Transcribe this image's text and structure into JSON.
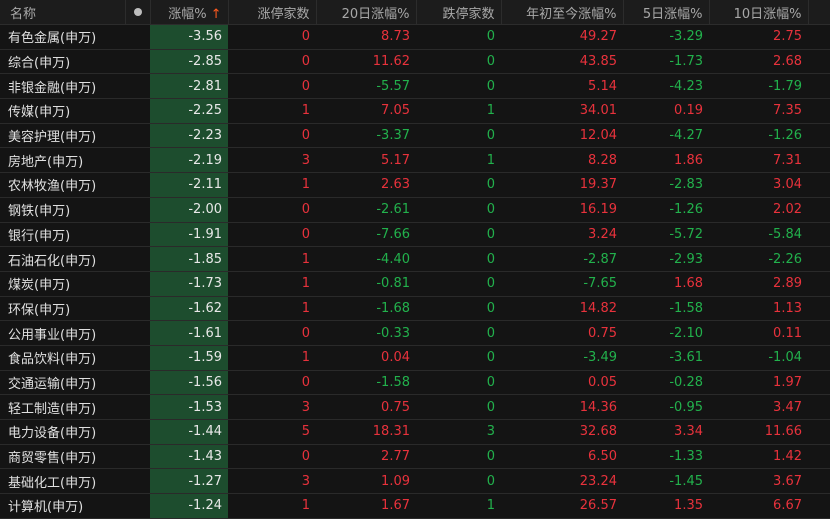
{
  "headers": {
    "name": "名称",
    "change": "涨幅%",
    "sort_arrow": "↑",
    "limit_up": "涨停家数",
    "d20": "20日涨幅%",
    "limit_down": "跌停家数",
    "ytd": "年初至今涨幅%",
    "d5": "5日涨幅%",
    "d10": "10日涨幅%"
  },
  "colors": {
    "up": "#e8323c",
    "down": "#22b14c",
    "highlight_column": "#1d4d2e"
  },
  "rows": [
    [
      "有色金属(申万)",
      "-3.56",
      "0",
      "8.73",
      "0",
      "49.27",
      "-3.29",
      "2.75"
    ],
    [
      "综合(申万)",
      "-2.85",
      "0",
      "11.62",
      "0",
      "43.85",
      "-1.73",
      "2.68"
    ],
    [
      "非银金融(申万)",
      "-2.81",
      "0",
      "-5.57",
      "0",
      "5.14",
      "-4.23",
      "-1.79"
    ],
    [
      "传媒(申万)",
      "-2.25",
      "1",
      "7.05",
      "1",
      "34.01",
      "0.19",
      "7.35"
    ],
    [
      "美容护理(申万)",
      "-2.23",
      "0",
      "-3.37",
      "0",
      "12.04",
      "-4.27",
      "-1.26"
    ],
    [
      "房地产(申万)",
      "-2.19",
      "3",
      "5.17",
      "1",
      "8.28",
      "1.86",
      "7.31"
    ],
    [
      "农林牧渔(申万)",
      "-2.11",
      "1",
      "2.63",
      "0",
      "19.37",
      "-2.83",
      "3.04"
    ],
    [
      "钢铁(申万)",
      "-2.00",
      "0",
      "-2.61",
      "0",
      "16.19",
      "-1.26",
      "2.02"
    ],
    [
      "银行(申万)",
      "-1.91",
      "0",
      "-7.66",
      "0",
      "3.24",
      "-5.72",
      "-5.84"
    ],
    [
      "石油石化(申万)",
      "-1.85",
      "1",
      "-4.40",
      "0",
      "-2.87",
      "-2.93",
      "-2.26"
    ],
    [
      "煤炭(申万)",
      "-1.73",
      "1",
      "-0.81",
      "0",
      "-7.65",
      "1.68",
      "2.89"
    ],
    [
      "环保(申万)",
      "-1.62",
      "1",
      "-1.68",
      "0",
      "14.82",
      "-1.58",
      "1.13"
    ],
    [
      "公用事业(申万)",
      "-1.61",
      "0",
      "-0.33",
      "0",
      "0.75",
      "-2.10",
      "0.11"
    ],
    [
      "食品饮料(申万)",
      "-1.59",
      "1",
      "0.04",
      "0",
      "-3.49",
      "-3.61",
      "-1.04"
    ],
    [
      "交通运输(申万)",
      "-1.56",
      "0",
      "-1.58",
      "0",
      "0.05",
      "-0.28",
      "1.97"
    ],
    [
      "轻工制造(申万)",
      "-1.53",
      "3",
      "0.75",
      "0",
      "14.36",
      "-0.95",
      "3.47"
    ],
    [
      "电力设备(申万)",
      "-1.44",
      "5",
      "18.31",
      "3",
      "32.68",
      "3.34",
      "11.66"
    ],
    [
      "商贸零售(申万)",
      "-1.43",
      "0",
      "2.77",
      "0",
      "6.50",
      "-1.33",
      "1.42"
    ],
    [
      "基础化工(申万)",
      "-1.27",
      "3",
      "1.09",
      "0",
      "23.24",
      "-1.45",
      "3.67"
    ],
    [
      "计算机(申万)",
      "-1.24",
      "1",
      "1.67",
      "1",
      "26.57",
      "1.35",
      "6.67"
    ]
  ]
}
